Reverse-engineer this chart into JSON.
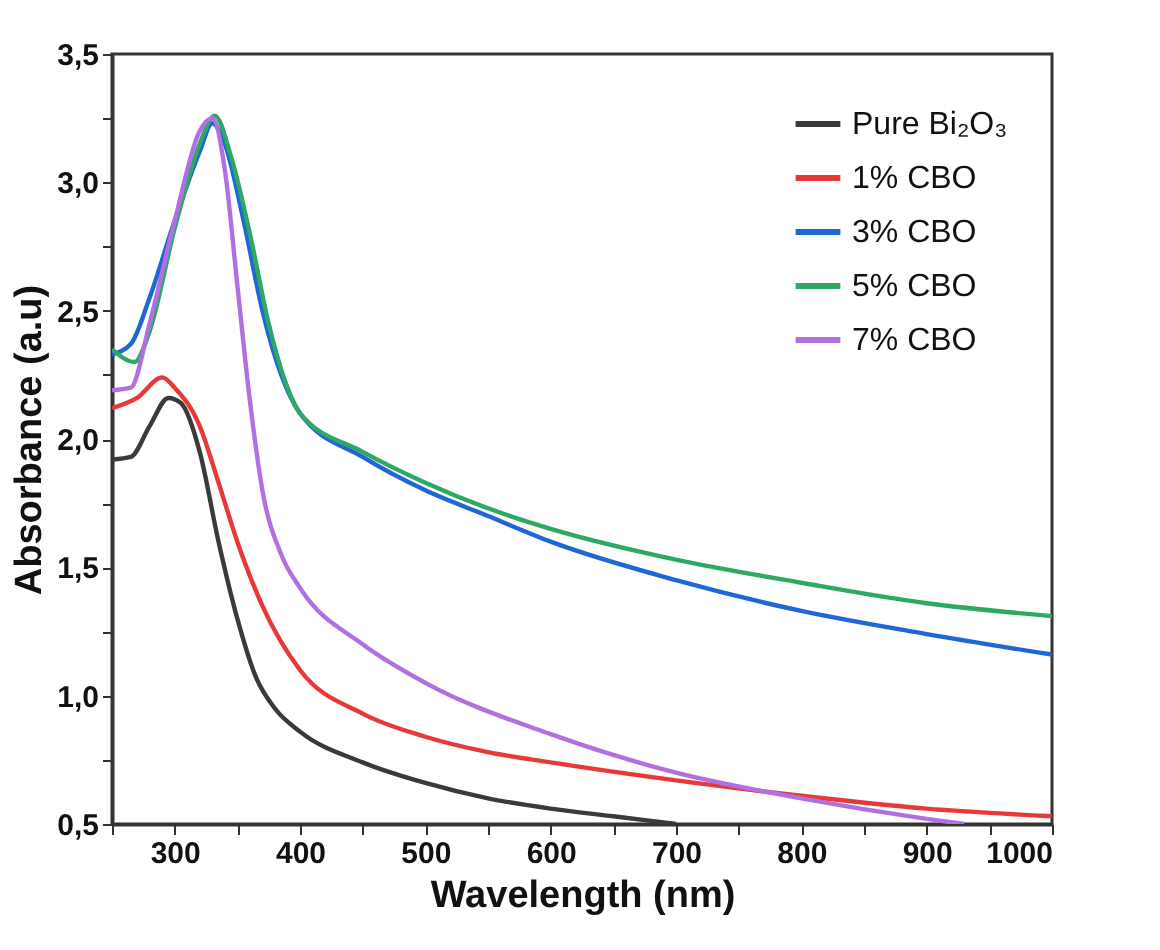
{
  "chart_data": {
    "type": "line",
    "xlabel": "Wavelength (nm)",
    "ylabel": "Absorbance (a.u)",
    "xlim": [
      250,
      1000
    ],
    "ylim": [
      0.5,
      3.5
    ],
    "xticks": [
      {
        "value": 250,
        "label": null
      },
      300,
      {
        "value": 350,
        "label": null
      },
      400,
      {
        "value": 450,
        "label": null
      },
      500,
      {
        "value": 550,
        "label": null
      },
      600,
      {
        "value": 650,
        "label": null
      },
      700,
      {
        "value": 750,
        "label": null
      },
      800,
      {
        "value": 850,
        "label": null
      },
      900,
      {
        "value": 950,
        "label": null
      },
      1000
    ],
    "yticks": [
      {
        "value": 0.5,
        "label": "0,5"
      },
      {
        "value": 0.75,
        "label": null
      },
      {
        "value": 1.0,
        "label": "1,0"
      },
      {
        "value": 1.25,
        "label": null
      },
      {
        "value": 1.5,
        "label": "1,5"
      },
      {
        "value": 1.75,
        "label": null
      },
      {
        "value": 2.0,
        "label": "2,0"
      },
      {
        "value": 2.25,
        "label": null
      },
      {
        "value": 2.5,
        "label": "2,5"
      },
      {
        "value": 2.75,
        "label": null
      },
      {
        "value": 3.0,
        "label": "3,0"
      },
      {
        "value": 3.25,
        "label": null
      },
      {
        "value": 3.5,
        "label": "3,5"
      }
    ],
    "grid": false,
    "legend": "top right",
    "line_style": "solid",
    "marker": "none",
    "series": [
      {
        "name": "Pure Bi₂O₃",
        "color": "#3a3a3a",
        "x": [
          250,
          265,
          280,
          295,
          305,
          320,
          335,
          350,
          365,
          380,
          400,
          450,
          500,
          550,
          600,
          650,
          700
        ],
        "values": [
          1.92,
          1.93,
          2.05,
          2.16,
          2.14,
          1.95,
          1.6,
          1.3,
          1.07,
          0.95,
          0.86,
          0.74,
          0.66,
          0.6,
          0.56,
          0.53,
          0.5
        ]
      },
      {
        "name": "1% CBO",
        "color": "#e8393a",
        "x": [
          250,
          270,
          290,
          300,
          320,
          335,
          350,
          370,
          400,
          450,
          500,
          550,
          600,
          700,
          800,
          900,
          1000
        ],
        "values": [
          2.12,
          2.16,
          2.24,
          2.2,
          2.05,
          1.83,
          1.6,
          1.35,
          1.1,
          0.93,
          0.84,
          0.78,
          0.74,
          0.67,
          0.61,
          0.56,
          0.53
        ]
      },
      {
        "name": "3% CBO",
        "color": "#1f66d6",
        "x": [
          250,
          265,
          280,
          300,
          320,
          330,
          340,
          355,
          370,
          385,
          400,
          450,
          500,
          550,
          600,
          700,
          800,
          900,
          1000
        ],
        "values": [
          2.33,
          2.37,
          2.55,
          2.85,
          3.12,
          3.23,
          3.15,
          2.85,
          2.5,
          2.25,
          2.1,
          1.93,
          1.8,
          1.7,
          1.6,
          1.45,
          1.33,
          1.24,
          1.16
        ]
      },
      {
        "name": "5% CBO",
        "color": "#2ea864",
        "x": [
          250,
          268,
          280,
          300,
          320,
          332,
          345,
          360,
          375,
          390,
          400,
          450,
          500,
          550,
          600,
          700,
          800,
          900,
          1000
        ],
        "values": [
          2.35,
          2.3,
          2.42,
          2.82,
          3.15,
          3.26,
          3.1,
          2.8,
          2.45,
          2.2,
          2.1,
          1.95,
          1.83,
          1.73,
          1.65,
          1.53,
          1.44,
          1.36,
          1.31
        ]
      },
      {
        "name": "7% CBO",
        "color": "#b070e0",
        "x": [
          250,
          265,
          280,
          300,
          320,
          330,
          340,
          350,
          360,
          370,
          385,
          400,
          450,
          500,
          600,
          700,
          800,
          900,
          930
        ],
        "values": [
          2.19,
          2.2,
          2.45,
          2.85,
          3.2,
          3.25,
          3.05,
          2.6,
          2.15,
          1.8,
          1.55,
          1.42,
          1.2,
          1.05,
          0.85,
          0.7,
          0.6,
          0.52,
          0.5
        ]
      }
    ]
  }
}
